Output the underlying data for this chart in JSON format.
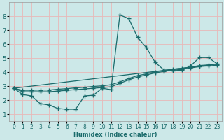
{
  "title": "",
  "xlabel": "Humidex (Indice chaleur)",
  "xlim": [
    -0.5,
    23.5
  ],
  "ylim": [
    0.5,
    9.0
  ],
  "yticks": [
    1,
    2,
    3,
    4,
    5,
    6,
    7,
    8
  ],
  "xticks": [
    0,
    1,
    2,
    3,
    4,
    5,
    6,
    7,
    8,
    9,
    10,
    11,
    12,
    13,
    14,
    15,
    16,
    17,
    18,
    19,
    20,
    21,
    22,
    23
  ],
  "background_color": "#cce8e8",
  "line_color": "#1a6b6b",
  "grid_color": "#e8b8b8",
  "lines": [
    {
      "x": [
        0,
        1,
        2,
        3,
        4,
        5,
        6,
        7,
        8,
        9,
        10,
        11,
        12,
        13,
        14,
        15,
        16,
        17,
        18,
        19,
        20,
        21,
        22,
        23
      ],
      "y": [
        2.85,
        2.4,
        2.3,
        1.75,
        1.65,
        1.4,
        1.35,
        1.35,
        2.3,
        2.35,
        2.85,
        2.75,
        8.1,
        7.85,
        6.5,
        5.75,
        4.7,
        4.15,
        4.1,
        4.15,
        4.45,
        5.05,
        5.05,
        4.6
      ],
      "marker": true
    },
    {
      "x": [
        0,
        1,
        2,
        3,
        4,
        5,
        6,
        7,
        8,
        9,
        10,
        11,
        12,
        13,
        14,
        15,
        16,
        17,
        18,
        19,
        20,
        21,
        22,
        23
      ],
      "y": [
        2.85,
        2.6,
        2.6,
        2.6,
        2.6,
        2.65,
        2.7,
        2.75,
        2.8,
        2.85,
        2.9,
        2.95,
        3.2,
        3.45,
        3.65,
        3.8,
        3.95,
        4.05,
        4.15,
        4.2,
        4.3,
        4.4,
        4.45,
        4.5
      ],
      "marker": true
    },
    {
      "x": [
        0,
        1,
        2,
        3,
        4,
        5,
        6,
        7,
        8,
        9,
        10,
        11,
        12,
        13,
        14,
        15,
        16,
        17,
        18,
        19,
        20,
        21,
        22,
        23
      ],
      "y": [
        2.85,
        2.7,
        2.7,
        2.72,
        2.72,
        2.78,
        2.82,
        2.88,
        2.92,
        2.98,
        3.02,
        3.1,
        3.3,
        3.55,
        3.75,
        3.88,
        4.02,
        4.12,
        4.22,
        4.28,
        4.35,
        4.48,
        4.52,
        4.58
      ],
      "marker": true
    },
    {
      "x": [
        0,
        23
      ],
      "y": [
        2.85,
        4.58
      ],
      "marker": false
    }
  ]
}
